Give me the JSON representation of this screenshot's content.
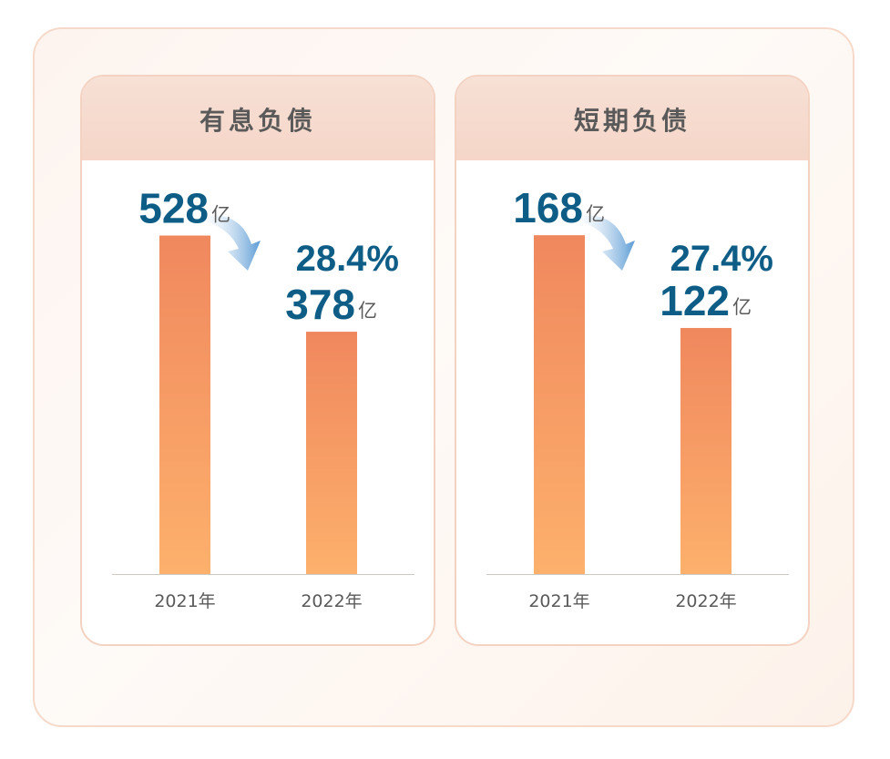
{
  "chart_data": [
    {
      "type": "bar",
      "title": "有息负债",
      "categories": [
        "2021年",
        "2022年"
      ],
      "values": [
        528,
        378
      ],
      "value_labels": [
        "528",
        "378"
      ],
      "unit": "亿",
      "change_label": "28.4%",
      "ylim": [
        0,
        560
      ]
    },
    {
      "type": "bar",
      "title": "短期负债",
      "categories": [
        "2021年",
        "2022年"
      ],
      "values": [
        168,
        122
      ],
      "value_labels": [
        "168",
        "122"
      ],
      "unit": "亿",
      "change_label": "27.4%",
      "ylim": [
        0,
        178
      ]
    }
  ],
  "colors": {
    "bar_top": "#f0885e",
    "bar_bottom": "#fdb06c",
    "value_text": "#0e5d86",
    "axis_text": "#5a5a5a",
    "arrow": "#5b9bd5"
  }
}
